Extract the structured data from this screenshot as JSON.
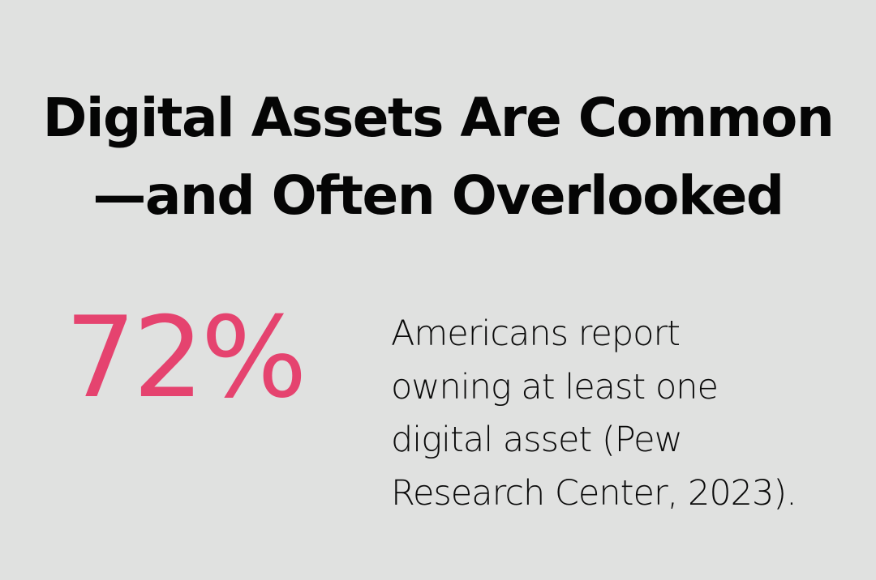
{
  "title": {
    "line1": "Digital Assets Are Common",
    "line2": "—and Often Overlooked"
  },
  "stat": {
    "value": "72%",
    "color": "#e5436f"
  },
  "description": {
    "lines": [
      "Americans report",
      "owning at least one",
      "digital asset (Pew",
      "Research Center, 2023)."
    ]
  },
  "colors": {
    "background": "#e0e1e0",
    "text": "#050505",
    "accent": "#e5436f"
  }
}
